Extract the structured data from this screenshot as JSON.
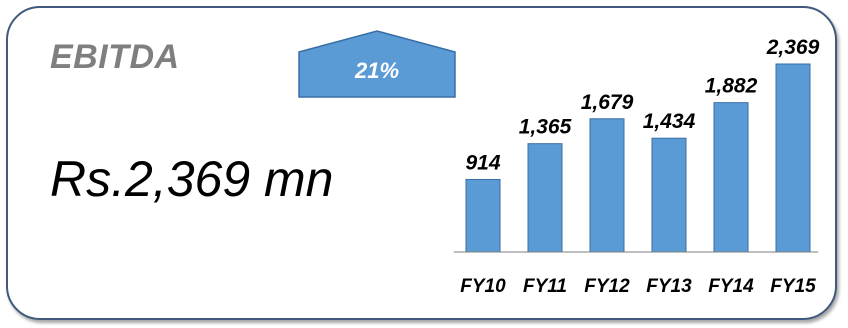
{
  "card": {
    "title": "EBITDA",
    "headline": "Rs.2,369 mn",
    "growth_label": "21%"
  },
  "colors": {
    "bar": "#5b9bd5",
    "bar_border": "#3a6ea5",
    "growth_fill": "#5b9bd5",
    "card_border": "#3f5a7c"
  },
  "chart_data": {
    "type": "bar",
    "categories": [
      "FY10",
      "FY11",
      "FY12",
      "FY13",
      "FY14",
      "FY15"
    ],
    "values": [
      914,
      1365,
      1679,
      1434,
      1882,
      2369
    ],
    "value_labels": [
      "914",
      "1,365",
      "1,679",
      "1,434",
      "1,882",
      "2,369"
    ],
    "title": "",
    "xlabel": "",
    "ylabel": "",
    "ylim": [
      0,
      2369
    ],
    "grid": false,
    "legend": "none"
  }
}
